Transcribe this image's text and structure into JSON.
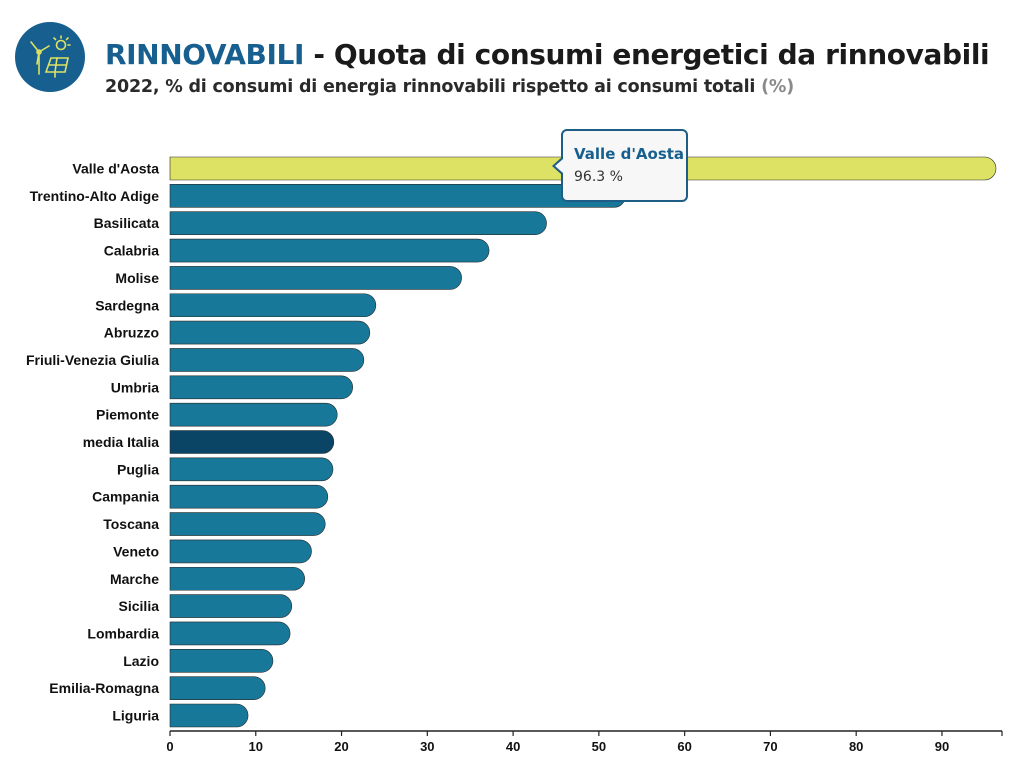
{
  "header": {
    "title_keyword": "RINNOVABILI",
    "title_rest": " - Quota di consumi energetici da rinnovabili",
    "subtitle_main": "2022, % di consumi di energia rinnovabili rispetto ai consumi totali ",
    "subtitle_unit": "(%)",
    "logo_icon": "renewables-icon"
  },
  "tooltip": {
    "title": "Valle d'Aosta",
    "value": "96.3 %"
  },
  "colors": {
    "bar": "#17789a",
    "highlight": "#dde264",
    "average": "#0b4566",
    "brand": "#175f8e"
  },
  "chart_data": {
    "type": "bar",
    "orientation": "horizontal",
    "categories": [
      "Valle d'Aosta",
      "Trentino-Alto Adige",
      "Basilicata",
      "Calabria",
      "Molise",
      "Sardegna",
      "Abruzzo",
      "Friuli-Venezia Giulia",
      "Umbria",
      "Piemonte",
      "media Italia",
      "Puglia",
      "Campania",
      "Toscana",
      "Veneto",
      "Marche",
      "Sicilia",
      "Lombardia",
      "Lazio",
      "Emilia-Romagna",
      "Liguria"
    ],
    "values": [
      96.3,
      53.1,
      43.9,
      37.2,
      34.0,
      24.0,
      23.3,
      22.6,
      21.3,
      19.5,
      19.1,
      19.0,
      18.4,
      18.1,
      16.5,
      15.7,
      14.2,
      14.0,
      12.0,
      11.1,
      9.1
    ],
    "highlighted": "Valle d'Aosta",
    "average_category": "media Italia",
    "xlim": [
      0,
      97
    ],
    "xticks": [
      0,
      10,
      20,
      30,
      40,
      50,
      60,
      70,
      80,
      90
    ],
    "xlabel": "",
    "ylabel": "",
    "grid": false
  }
}
